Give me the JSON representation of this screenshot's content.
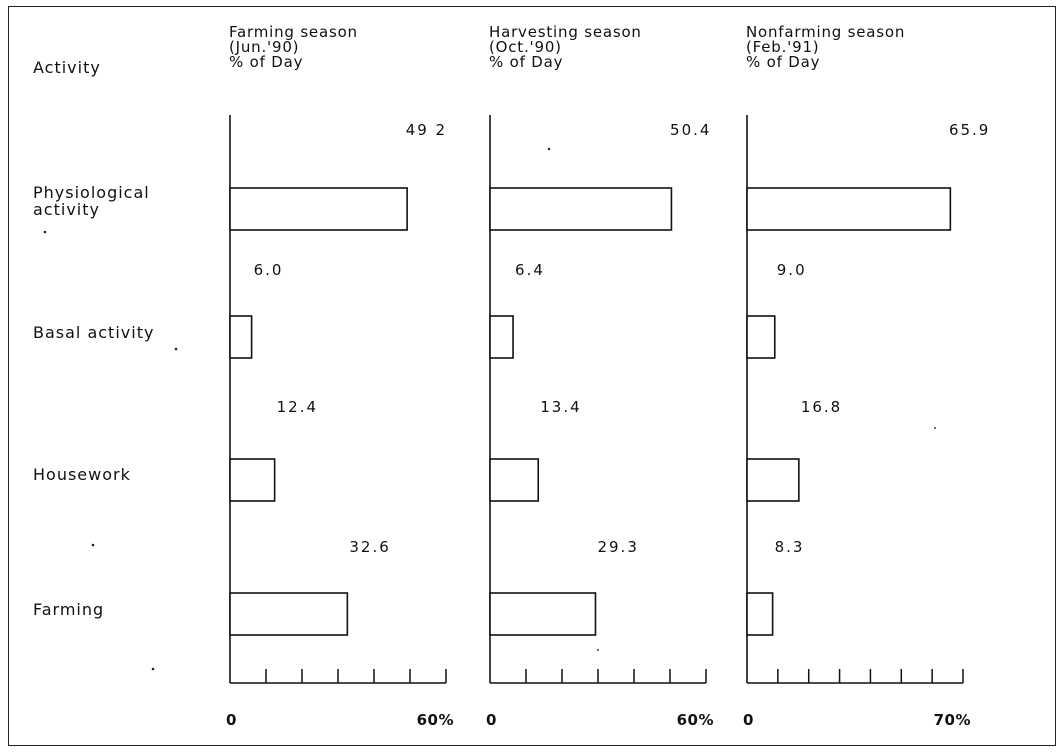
{
  "chart_data": {
    "type": "bar",
    "orientation": "horizontal",
    "category_header": "Activity",
    "categories": [
      "Physiological activity",
      "Basal activity",
      "Housework",
      "Farming"
    ],
    "category_lines": [
      [
        "Physiological",
        "activity"
      ],
      [
        "Basal activity"
      ],
      [
        "Housework"
      ],
      [
        "Farming"
      ]
    ],
    "panels": [
      {
        "title_lines": [
          "Farming season",
          "(Jun.'90)",
          "% of Day"
        ],
        "values": [
          49.2,
          6.0,
          12.4,
          32.6
        ],
        "value_labels": [
          "49 2",
          "6.0",
          "12.4",
          "32.6"
        ],
        "xlim": [
          0,
          60
        ],
        "tick_min_label": "0",
        "tick_max_label": "60%"
      },
      {
        "title_lines": [
          "Harvesting season",
          "(Oct.'90)",
          "% of Day"
        ],
        "values": [
          50.4,
          6.4,
          13.4,
          29.3
        ],
        "value_labels": [
          "50.4",
          "6.4",
          "13.4",
          "29.3"
        ],
        "xlim": [
          0,
          60
        ],
        "tick_min_label": "0",
        "tick_max_label": "60%"
      },
      {
        "title_lines": [
          "Nonfarming season",
          "(Feb.'91)",
          "% of Day"
        ],
        "values": [
          65.9,
          9.0,
          16.8,
          8.3
        ],
        "value_labels": [
          "65.9",
          "9.0",
          "16.8",
          "8.3"
        ],
        "xlim": [
          0,
          70
        ],
        "tick_min_label": "0",
        "tick_max_label": "70%"
      }
    ],
    "grid": false,
    "legend": "none"
  }
}
